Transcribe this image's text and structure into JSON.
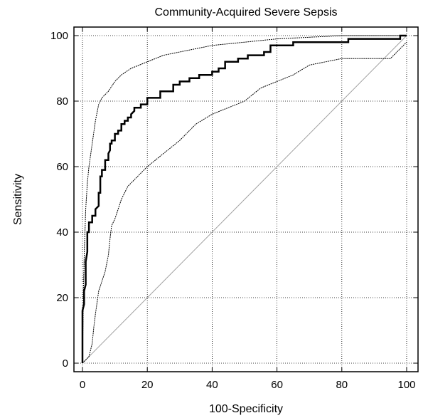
{
  "chart_data": {
    "type": "line",
    "title": "Community-Acquired Severe Sepsis",
    "xlabel": "100-Specificity",
    "ylabel": "Sensitivity",
    "xlim": [
      0,
      100
    ],
    "ylim": [
      0,
      100
    ],
    "xticks": [
      "0",
      "20",
      "40",
      "60",
      "80",
      "100"
    ],
    "yticks": [
      "0",
      "20",
      "40",
      "60",
      "80",
      "100"
    ],
    "grid": true,
    "legend": "none",
    "colors": {
      "roc": "#000000",
      "ci": "#000000",
      "reference": "#a0a0a0",
      "grid": "#000000"
    },
    "series": [
      {
        "role": "roc",
        "points": [
          [
            0,
            0
          ],
          [
            0,
            16
          ],
          [
            0.5,
            18
          ],
          [
            0.5,
            22
          ],
          [
            1,
            24
          ],
          [
            1,
            31
          ],
          [
            1.5,
            34
          ],
          [
            1.5,
            40
          ],
          [
            2,
            40
          ],
          [
            2,
            43
          ],
          [
            3,
            43
          ],
          [
            3,
            45
          ],
          [
            4,
            45
          ],
          [
            4,
            47
          ],
          [
            5,
            48
          ],
          [
            5,
            52
          ],
          [
            5.5,
            52
          ],
          [
            5.5,
            57
          ],
          [
            6,
            57
          ],
          [
            6,
            59
          ],
          [
            7,
            59
          ],
          [
            7,
            62
          ],
          [
            8,
            62
          ],
          [
            8,
            64
          ],
          [
            8.5,
            65
          ],
          [
            8.5,
            67
          ],
          [
            9,
            67
          ],
          [
            9,
            68
          ],
          [
            10,
            68
          ],
          [
            10,
            70
          ],
          [
            11,
            70
          ],
          [
            11,
            71
          ],
          [
            12,
            71
          ],
          [
            12,
            73
          ],
          [
            13,
            73
          ],
          [
            13,
            74
          ],
          [
            14,
            74
          ],
          [
            14,
            75
          ],
          [
            15,
            75
          ],
          [
            15,
            76
          ],
          [
            16,
            77
          ],
          [
            16,
            78
          ],
          [
            18,
            78
          ],
          [
            18,
            79
          ],
          [
            20,
            79
          ],
          [
            20,
            81
          ],
          [
            24,
            81
          ],
          [
            24,
            83
          ],
          [
            28,
            83
          ],
          [
            28,
            85
          ],
          [
            30,
            85
          ],
          [
            30,
            86
          ],
          [
            33,
            86
          ],
          [
            33,
            87
          ],
          [
            36,
            87
          ],
          [
            36,
            88
          ],
          [
            40,
            88
          ],
          [
            40,
            89
          ],
          [
            42,
            89
          ],
          [
            42,
            90
          ],
          [
            44,
            90
          ],
          [
            44,
            92
          ],
          [
            48,
            92
          ],
          [
            48,
            93
          ],
          [
            51,
            93
          ],
          [
            51,
            94
          ],
          [
            56,
            94
          ],
          [
            56,
            95
          ],
          [
            58,
            95
          ],
          [
            58,
            97
          ],
          [
            65,
            97
          ],
          [
            65,
            98
          ],
          [
            82,
            98
          ],
          [
            82,
            99
          ],
          [
            98,
            99
          ],
          [
            98,
            100
          ],
          [
            100,
            100
          ]
        ]
      },
      {
        "role": "ci-upper",
        "points": [
          [
            0,
            0
          ],
          [
            0.3,
            23
          ],
          [
            0.6,
            35
          ],
          [
            1,
            47
          ],
          [
            1.5,
            55
          ],
          [
            2,
            60
          ],
          [
            3,
            67
          ],
          [
            4,
            74
          ],
          [
            5,
            79
          ],
          [
            6,
            81
          ],
          [
            8,
            83
          ],
          [
            10,
            86
          ],
          [
            12,
            88
          ],
          [
            15,
            90
          ],
          [
            20,
            92
          ],
          [
            25,
            94
          ],
          [
            30,
            95
          ],
          [
            40,
            97
          ],
          [
            50,
            98
          ],
          [
            60,
            99
          ],
          [
            70,
            99.5
          ],
          [
            80,
            100
          ],
          [
            100,
            100
          ]
        ]
      },
      {
        "role": "ci-lower",
        "points": [
          [
            0,
            0
          ],
          [
            2,
            2
          ],
          [
            3,
            6
          ],
          [
            3.5,
            11
          ],
          [
            4,
            15
          ],
          [
            5,
            22
          ],
          [
            6,
            25
          ],
          [
            7,
            28
          ],
          [
            8,
            33
          ],
          [
            8.5,
            38
          ],
          [
            9,
            42
          ],
          [
            10,
            44
          ],
          [
            11,
            47
          ],
          [
            12,
            50
          ],
          [
            13,
            52
          ],
          [
            14,
            54
          ],
          [
            15,
            55
          ],
          [
            17,
            57
          ],
          [
            20,
            60
          ],
          [
            25,
            64
          ],
          [
            30,
            68
          ],
          [
            35,
            73
          ],
          [
            40,
            76
          ],
          [
            45,
            78
          ],
          [
            50,
            80
          ],
          [
            55,
            84
          ],
          [
            60,
            86
          ],
          [
            65,
            88
          ],
          [
            70,
            91
          ],
          [
            80,
            93
          ],
          [
            95,
            93
          ],
          [
            100,
            98
          ]
        ]
      },
      {
        "role": "reference",
        "points": [
          [
            0,
            0
          ],
          [
            100,
            100
          ]
        ]
      }
    ]
  }
}
